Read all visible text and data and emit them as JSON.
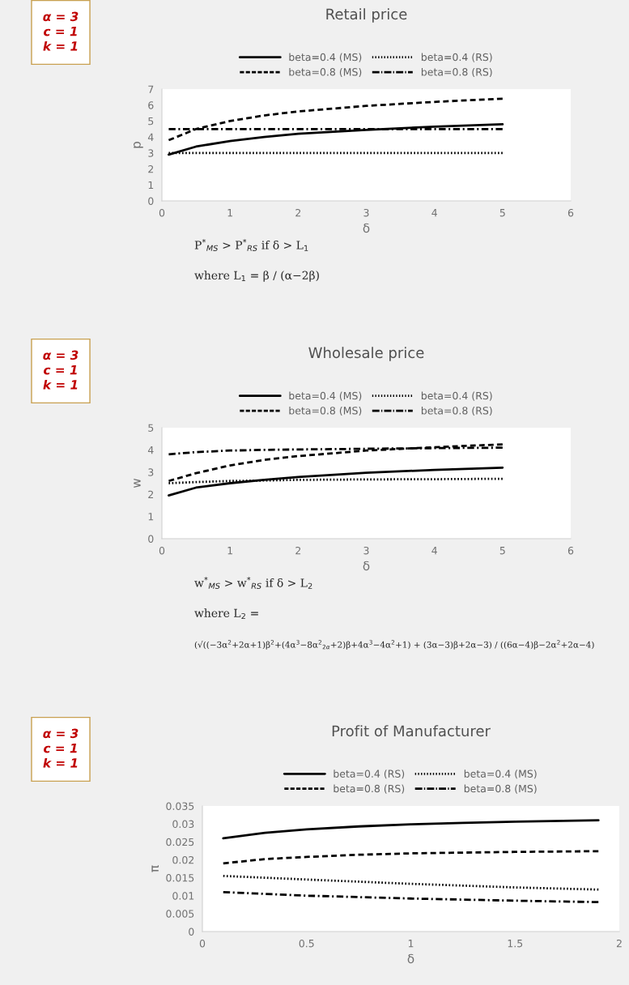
{
  "chart_data": [
    {
      "type": "line",
      "title": "Retail price",
      "xlabel": "δ",
      "ylabel": "p",
      "xlim": [
        0,
        6
      ],
      "xticks": [
        0,
        1,
        2,
        3,
        4,
        5,
        6
      ],
      "ylim": [
        0,
        7
      ],
      "yticks": [
        0,
        1,
        2,
        3,
        4,
        5,
        6,
        7
      ],
      "grid": false,
      "legend": "top",
      "x": [
        0.1,
        0.5,
        1,
        1.5,
        2,
        3,
        4,
        5
      ],
      "series": [
        {
          "name": "beta=0.4 (MS)",
          "color": "#000000",
          "line_style": "solid",
          "values": [
            2.9,
            3.4,
            3.75,
            4.0,
            4.2,
            4.45,
            4.65,
            4.8
          ]
        },
        {
          "name": "beta=0.8 (MS)",
          "color": "#000000",
          "line_style": "dashed",
          "values": [
            3.8,
            4.5,
            5.0,
            5.35,
            5.6,
            5.95,
            6.2,
            6.4
          ]
        },
        {
          "name": "beta=0.4 (RS)",
          "color": "#000000",
          "line_style": "dotted",
          "values": [
            3.0,
            3.0,
            3.0,
            3.0,
            3.0,
            3.0,
            3.0,
            3.0
          ]
        },
        {
          "name": "beta=0.8 (RS)",
          "color": "#000000",
          "line_style": "dashdot",
          "values": [
            4.5,
            4.5,
            4.5,
            4.5,
            4.5,
            4.5,
            4.5,
            4.5
          ]
        }
      ],
      "annotations": [
        "α = 3\nc = 1\nk = 1",
        "P$^{*}$$_{MS}$ > P$^{*}$$_{RS}$ if δ > L$_{1}$",
        "where L$_{1}$ = β / (α−2β)"
      ]
    },
    {
      "type": "line",
      "title": "Wholesale price",
      "xlabel": "δ",
      "ylabel": "w",
      "xlim": [
        0,
        6
      ],
      "xticks": [
        0,
        1,
        2,
        3,
        4,
        5,
        6
      ],
      "ylim": [
        0,
        5
      ],
      "yticks": [
        0,
        1,
        2,
        3,
        4,
        5
      ],
      "grid": false,
      "legend": "top",
      "x": [
        0.1,
        0.5,
        1,
        1.5,
        2,
        3,
        4,
        5
      ],
      "series": [
        {
          "name": "beta=0.4 (MS)",
          "color": "#000000",
          "line_style": "solid",
          "values": [
            1.95,
            2.3,
            2.5,
            2.65,
            2.78,
            2.97,
            3.1,
            3.2
          ]
        },
        {
          "name": "beta=0.8 (MS)",
          "color": "#000000",
          "line_style": "dashed",
          "values": [
            2.6,
            2.95,
            3.3,
            3.55,
            3.72,
            3.97,
            4.12,
            4.25
          ]
        },
        {
          "name": "beta=0.4 (RS)",
          "color": "#000000",
          "line_style": "dotted",
          "values": [
            2.5,
            2.55,
            2.6,
            2.62,
            2.65,
            2.67,
            2.68,
            2.7
          ]
        },
        {
          "name": "beta=0.8 (RS)",
          "color": "#000000",
          "line_style": "dashdot",
          "values": [
            3.8,
            3.9,
            3.97,
            4.0,
            4.02,
            4.05,
            4.08,
            4.1
          ]
        }
      ],
      "annotations": [
        "α = 3\nc = 1\nk = 1",
        "w$^{*}$$_{MS}$ > w$^{*}$$_{RS}$ if δ > L$_{2}$",
        "where L$_{2}$ =",
        "(√((−3α$^{2}$+2α+1)β$^{2}$+(4α$^{3}$−8α$^{2}$$_{2α}$+2)β+4α$^{3}$−4α$^{2}$+1) + (3α−3)β+2α−3) / ((6α−4)β−2α$^{2}$+2α−4)"
      ]
    },
    {
      "type": "line",
      "title": "Profit of Manufacturer",
      "xlabel": "δ",
      "ylabel": "π",
      "xlim": [
        0,
        2
      ],
      "xticks": [
        0,
        0.5,
        1,
        1.5,
        2
      ],
      "ylim": [
        0,
        0.035
      ],
      "yticks": [
        0,
        0.005,
        0.01,
        0.015,
        0.02,
        0.025,
        0.03,
        0.035
      ],
      "grid": false,
      "legend": "top",
      "x": [
        0.1,
        0.3,
        0.5,
        0.75,
        1,
        1.25,
        1.5,
        1.9
      ],
      "series": [
        {
          "name": "beta=0.4 (RS)",
          "color": "#000000",
          "line_style": "solid",
          "values": [
            0.026,
            0.0275,
            0.0285,
            0.0293,
            0.0299,
            0.0303,
            0.0306,
            0.031
          ]
        },
        {
          "name": "beta=0.8 (RS)",
          "color": "#000000",
          "line_style": "dashed",
          "values": [
            0.019,
            0.0202,
            0.0208,
            0.0214,
            0.0218,
            0.022,
            0.0222,
            0.0224
          ]
        },
        {
          "name": "beta=0.4 (MS)",
          "color": "#000000",
          "line_style": "dotted",
          "values": [
            0.0155,
            0.015,
            0.0145,
            0.0139,
            0.0133,
            0.0128,
            0.0123,
            0.0117
          ]
        },
        {
          "name": "beta=0.8 (MS)",
          "color": "#000000",
          "line_style": "dashdot",
          "values": [
            0.011,
            0.0105,
            0.01,
            0.0096,
            0.0092,
            0.0089,
            0.0086,
            0.0082
          ]
        }
      ],
      "annotations": [
        "α = 3\nc = 1\nk = 1"
      ]
    }
  ]
}
